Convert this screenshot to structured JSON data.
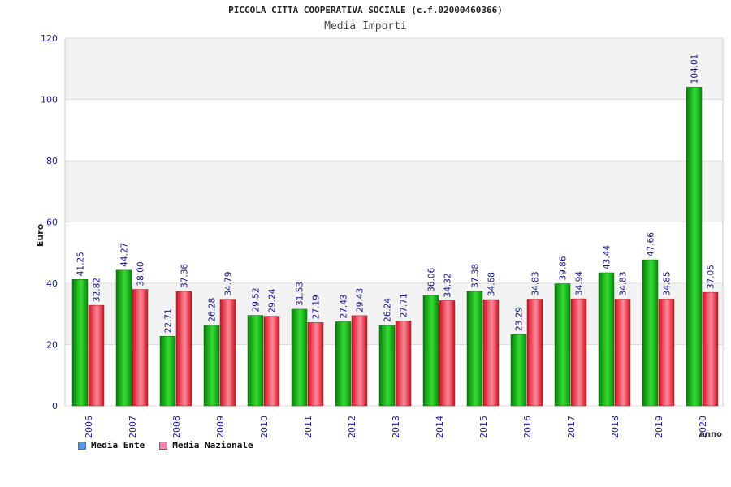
{
  "chart_data": {
    "type": "bar",
    "title": "PICCOLA CITTA COOPERATIVA SOCIALE (c.f.02000460366)",
    "subtitle": "Media Importi",
    "xlabel": "anno",
    "ylabel": "Euro",
    "ylim": [
      0,
      120
    ],
    "yticks": [
      "0",
      "20",
      "40",
      "60",
      "80",
      "100",
      "120"
    ],
    "categories": [
      "2006",
      "2007",
      "2008",
      "2009",
      "2010",
      "2011",
      "2012",
      "2013",
      "2014",
      "2015",
      "2016",
      "2017",
      "2018",
      "2019",
      "2020"
    ],
    "series": [
      {
        "name": "Media Ente",
        "values": [
          41.25,
          44.27,
          22.71,
          26.28,
          29.52,
          31.53,
          27.43,
          26.24,
          36.06,
          37.38,
          23.29,
          39.86,
          43.44,
          47.66,
          104.01
        ],
        "labels": [
          "41.25",
          "44.27",
          "22.71",
          "26.28",
          "29.52",
          "31.53",
          "27.43",
          "26.24",
          "36.06",
          "37.38",
          "23.29",
          "39.86",
          "43.44",
          "47.66",
          "104.01"
        ],
        "color": "#22bb22",
        "legend_color": "#5599ee"
      },
      {
        "name": "Media Nazionale",
        "values": [
          32.82,
          38.0,
          37.36,
          34.79,
          29.24,
          27.19,
          29.43,
          27.71,
          34.32,
          34.68,
          34.83,
          34.94,
          34.83,
          34.85,
          37.05
        ],
        "labels": [
          "32.82",
          "38.00",
          "37.36",
          "34.79",
          "29.24",
          "27.19",
          "29.43",
          "27.71",
          "34.32",
          "34.68",
          "34.83",
          "34.94",
          "34.83",
          "34.85",
          "37.05"
        ],
        "color": "#ee3344",
        "legend_color": "#ee88aa"
      }
    ],
    "grid": true,
    "legend_position": "bottom-left"
  }
}
